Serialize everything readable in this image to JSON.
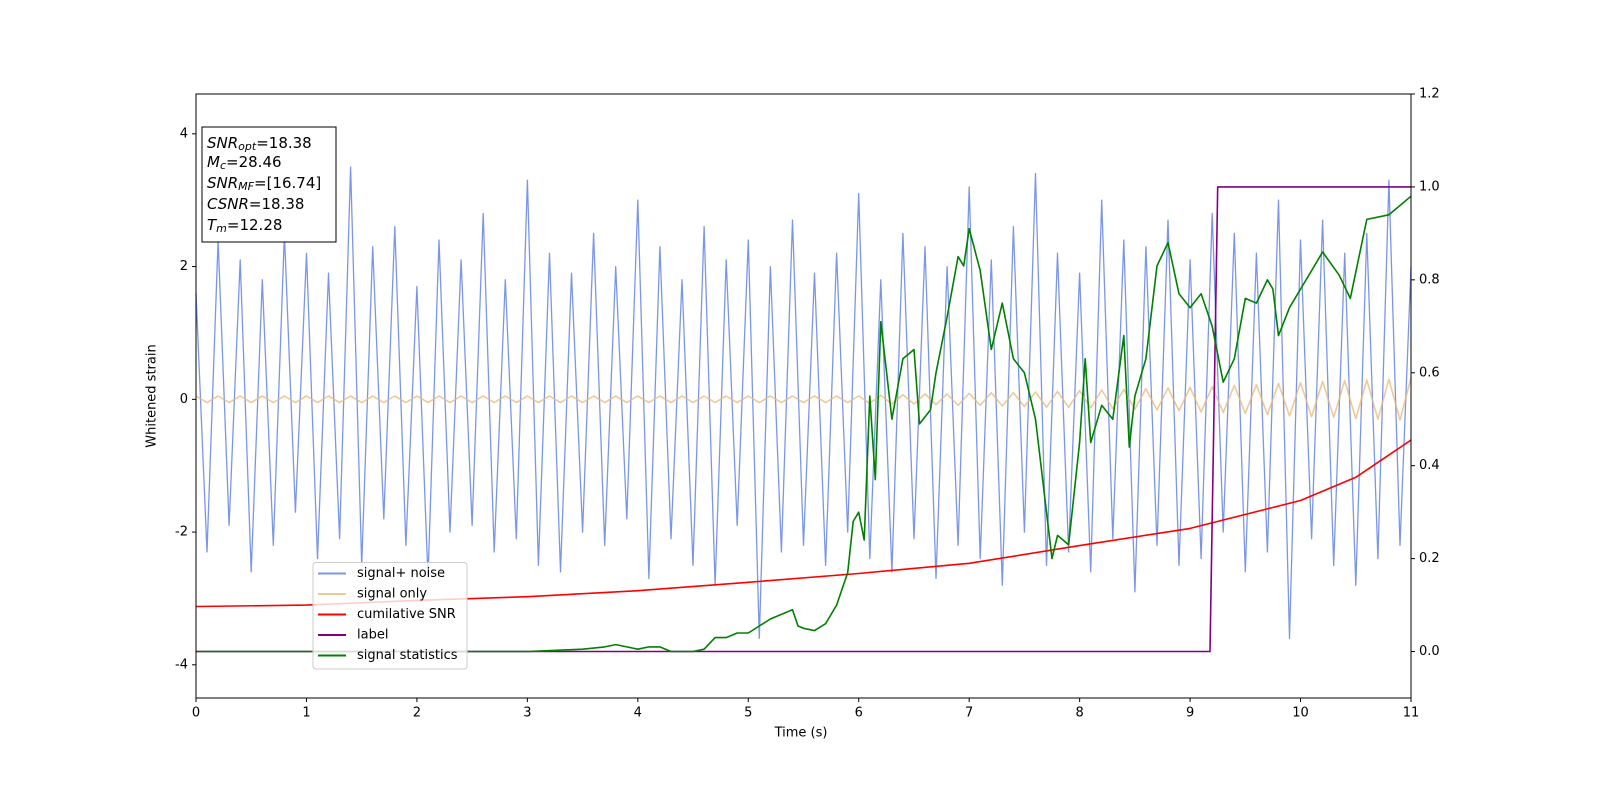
{
  "chart_data": {
    "type": "line",
    "xlabel": "Time (s)",
    "ylabel": "Whitened strain",
    "xlim": [
      0,
      11
    ],
    "ylim": [
      -4.5,
      4.6
    ],
    "y2lim": [
      -0.1,
      1.2
    ],
    "xticks": [
      0,
      1,
      2,
      3,
      4,
      5,
      6,
      7,
      8,
      9,
      10,
      11
    ],
    "yticks": [
      -4,
      -2,
      0,
      2,
      4
    ],
    "y2ticks": [
      {
        "value": 0,
        "label": "0.0"
      },
      {
        "value": 0.2,
        "label": "0.2"
      },
      {
        "value": 0.4,
        "label": "0.4"
      },
      {
        "value": 0.6,
        "label": "0.6"
      },
      {
        "value": 0.8,
        "label": "0.8"
      },
      {
        "value": 1,
        "label": "1.0"
      },
      {
        "value": 1.2,
        "label": "1.2"
      }
    ],
    "legend_loc": "lower left",
    "annotations": [
      {
        "name": "SNR",
        "sub": "opt",
        "value": "=18.38"
      },
      {
        "name": "M",
        "sub": "c",
        "value": "=28.46"
      },
      {
        "name": "SNR",
        "sub": "MF",
        "value": "=[16.74]"
      },
      {
        "name": "CSNR",
        "value": "=18.38"
      },
      {
        "name": "T",
        "sub": "m",
        "value": "=12.28"
      }
    ],
    "series": [
      {
        "name": "signal+ noise",
        "color": "#7b96e8",
        "axis": "y",
        "x": [
          0,
          0.1,
          0.2,
          0.3,
          0.4,
          0.5,
          0.6,
          0.7,
          0.8,
          0.9,
          1,
          1.1,
          1.2,
          1.3,
          1.4,
          1.5,
          1.6,
          1.7,
          1.8,
          1.9,
          2,
          2.1,
          2.2,
          2.3,
          2.4,
          2.5,
          2.6,
          2.7,
          2.8,
          2.9,
          3,
          3.1,
          3.2,
          3.3,
          3.4,
          3.5,
          3.6,
          3.7,
          3.8,
          3.9,
          4,
          4.1,
          4.2,
          4.3,
          4.4,
          4.5,
          4.6,
          4.7,
          4.8,
          4.9,
          5,
          5.1,
          5.2,
          5.3,
          5.4,
          5.5,
          5.6,
          5.7,
          5.8,
          5.9,
          6,
          6.1,
          6.2,
          6.3,
          6.4,
          6.5,
          6.6,
          6.7,
          6.8,
          6.9,
          7,
          7.1,
          7.2,
          7.3,
          7.4,
          7.5,
          7.6,
          7.7,
          7.8,
          7.9,
          8,
          8.1,
          8.2,
          8.3,
          8.4,
          8.5,
          8.6,
          8.7,
          8.8,
          8.9,
          9,
          9.1,
          9.2,
          9.3,
          9.4,
          9.5,
          9.6,
          9.7,
          9.8,
          9.9,
          10,
          10.1,
          10.2,
          10.3,
          10.4,
          10.5,
          10.6,
          10.7,
          10.8,
          10.9,
          11
        ],
        "values": [
          1.6,
          -2.3,
          2.4,
          -1.9,
          2.1,
          -2.6,
          1.8,
          -2.2,
          2.5,
          -1.7,
          2.2,
          -2.4,
          1.9,
          -2.1,
          3.5,
          -2.5,
          2.3,
          -1.8,
          2.6,
          -2.2,
          1.7,
          -2.7,
          2.4,
          -2.0,
          2.1,
          -1.9,
          2.8,
          -2.3,
          1.8,
          -2.1,
          3.3,
          -2.5,
          2.2,
          -2.6,
          1.9,
          -2.0,
          2.5,
          -2.2,
          2.0,
          -1.8,
          3.0,
          -2.7,
          2.3,
          -2.1,
          1.8,
          -2.5,
          2.6,
          -2.8,
          2.1,
          -1.9,
          2.4,
          -3.6,
          2.0,
          -2.3,
          2.7,
          -2.2,
          1.9,
          -2.5,
          2.2,
          -2.0,
          3.1,
          -2.4,
          1.8,
          -2.6,
          2.5,
          -2.1,
          2.3,
          -2.7,
          2.0,
          -2.2,
          3.2,
          -2.4,
          2.1,
          -2.8,
          2.6,
          -2.0,
          3.4,
          -2.5,
          2.2,
          -2.3,
          1.9,
          -2.6,
          3.0,
          -2.1,
          2.4,
          -2.9,
          2.3,
          -2.2,
          2.7,
          -2.5,
          2.1,
          -2.4,
          2.8,
          -2.0,
          2.5,
          -2.6,
          2.2,
          -2.3,
          3.0,
          -3.6,
          2.4,
          -2.1,
          2.7,
          -2.5,
          2.2,
          -2.8,
          2.5,
          -2.4,
          3.3,
          -2.2,
          2.0
        ]
      },
      {
        "name": "signal only",
        "color": "#e8b877",
        "axis": "y",
        "x": [
          0,
          0.1,
          0.2,
          0.3,
          0.4,
          0.5,
          0.6,
          0.7,
          0.8,
          0.9,
          1,
          1.1,
          1.2,
          1.3,
          1.4,
          1.5,
          1.6,
          1.7,
          1.8,
          1.9,
          2,
          2.1,
          2.2,
          2.3,
          2.4,
          2.5,
          2.6,
          2.7,
          2.8,
          2.9,
          3,
          3.1,
          3.2,
          3.3,
          3.4,
          3.5,
          3.6,
          3.7,
          3.8,
          3.9,
          4,
          4.1,
          4.2,
          4.3,
          4.4,
          4.5,
          4.6,
          4.7,
          4.8,
          4.9,
          5,
          5.1,
          5.2,
          5.3,
          5.4,
          5.5,
          5.6,
          5.7,
          5.8,
          5.9,
          6,
          6.1,
          6.2,
          6.3,
          6.4,
          6.5,
          6.6,
          6.7,
          6.8,
          6.9,
          7,
          7.1,
          7.2,
          7.3,
          7.4,
          7.5,
          7.6,
          7.7,
          7.8,
          7.9,
          8,
          8.1,
          8.2,
          8.3,
          8.4,
          8.5,
          8.6,
          8.7,
          8.8,
          8.9,
          9,
          9.1,
          9.2,
          9.3,
          9.4,
          9.5,
          9.6,
          9.7,
          9.8,
          9.9,
          10,
          10.1,
          10.2,
          10.3,
          10.4,
          10.5,
          10.6,
          10.7,
          10.8,
          10.9,
          11
        ],
        "values": [
          0.05,
          -0.05,
          0.05,
          -0.05,
          0.05,
          -0.05,
          0.05,
          -0.05,
          0.05,
          -0.05,
          0.05,
          -0.05,
          0.05,
          -0.05,
          0.05,
          -0.05,
          0.05,
          -0.05,
          0.05,
          -0.05,
          0.05,
          -0.05,
          0.05,
          -0.05,
          0.05,
          -0.05,
          0.05,
          -0.05,
          0.05,
          -0.05,
          0.05,
          -0.05,
          0.05,
          -0.05,
          0.05,
          -0.05,
          0.05,
          -0.05,
          0.05,
          -0.05,
          0.05,
          -0.05,
          0.05,
          -0.05,
          0.05,
          -0.05,
          0.05,
          -0.05,
          0.05,
          -0.05,
          0.05,
          -0.05,
          0.05,
          -0.05,
          0.05,
          -0.05,
          0.05,
          -0.05,
          0.05,
          -0.05,
          0.05,
          -0.06,
          0.06,
          -0.07,
          0.07,
          -0.07,
          0.08,
          -0.08,
          0.08,
          -0.09,
          0.09,
          -0.09,
          0.1,
          -0.1,
          0.1,
          -0.11,
          0.11,
          -0.12,
          0.12,
          -0.12,
          0.13,
          -0.13,
          0.14,
          -0.14,
          0.15,
          -0.15,
          0.16,
          -0.16,
          0.17,
          -0.17,
          0.18,
          -0.19,
          0.19,
          -0.2,
          0.21,
          -0.21,
          0.22,
          -0.23,
          0.24,
          -0.25,
          0.25,
          -0.26,
          0.27,
          -0.27,
          0.28,
          -0.29,
          0.29,
          -0.3,
          0.3,
          -0.31,
          0.32
        ]
      },
      {
        "name": "cumilative SNR",
        "color": "#ff0000",
        "axis": "y2",
        "x": [
          0,
          1,
          2,
          3,
          4,
          5,
          6,
          7,
          8,
          9,
          10,
          10.5,
          11
        ],
        "values": [
          0.097,
          0.1,
          0.11,
          0.118,
          0.131,
          0.149,
          0.168,
          0.19,
          0.228,
          0.265,
          0.325,
          0.375,
          0.455
        ]
      },
      {
        "name": "label",
        "color": "#800080",
        "axis": "y2",
        "x": [
          0,
          9.18,
          9.25,
          11
        ],
        "values": [
          0,
          0,
          1,
          1
        ]
      },
      {
        "name": "signal statistics",
        "color": "#008000",
        "axis": "y2",
        "x": [
          0,
          1,
          2,
          3,
          3.5,
          3.7,
          3.8,
          3.9,
          4.0,
          4.1,
          4.2,
          4.3,
          4.5,
          4.6,
          4.7,
          4.8,
          4.9,
          5.0,
          5.1,
          5.2,
          5.3,
          5.4,
          5.45,
          5.5,
          5.6,
          5.7,
          5.8,
          5.9,
          5.95,
          6.0,
          6.05,
          6.1,
          6.15,
          6.2,
          6.3,
          6.4,
          6.5,
          6.55,
          6.65,
          6.7,
          6.8,
          6.9,
          6.95,
          7.0,
          7.1,
          7.2,
          7.3,
          7.4,
          7.5,
          7.6,
          7.7,
          7.75,
          7.8,
          7.9,
          8.0,
          8.05,
          8.1,
          8.2,
          8.3,
          8.4,
          8.45,
          8.5,
          8.6,
          8.7,
          8.8,
          8.9,
          9.0,
          9.1,
          9.2,
          9.3,
          9.4,
          9.5,
          9.6,
          9.7,
          9.75,
          9.8,
          9.9,
          10.0,
          10.1,
          10.2,
          10.35,
          10.45,
          10.6,
          10.8,
          10.9,
          11.0
        ],
        "values": [
          0,
          0,
          0,
          0,
          0.005,
          0.01,
          0.015,
          0.01,
          0.005,
          0.01,
          0.01,
          0.0,
          0.0,
          0.005,
          0.03,
          0.03,
          0.04,
          0.04,
          0.055,
          0.07,
          0.08,
          0.09,
          0.055,
          0.05,
          0.045,
          0.06,
          0.1,
          0.17,
          0.28,
          0.3,
          0.24,
          0.55,
          0.37,
          0.71,
          0.5,
          0.63,
          0.65,
          0.49,
          0.52,
          0.6,
          0.72,
          0.85,
          0.83,
          0.91,
          0.82,
          0.65,
          0.75,
          0.63,
          0.6,
          0.5,
          0.3,
          0.2,
          0.25,
          0.23,
          0.45,
          0.63,
          0.45,
          0.53,
          0.5,
          0.68,
          0.44,
          0.55,
          0.63,
          0.83,
          0.88,
          0.77,
          0.74,
          0.77,
          0.7,
          0.58,
          0.63,
          0.76,
          0.75,
          0.8,
          0.78,
          0.68,
          0.74,
          0.78,
          0.82,
          0.86,
          0.81,
          0.76,
          0.93,
          0.94,
          0.96,
          0.98
        ]
      }
    ]
  }
}
